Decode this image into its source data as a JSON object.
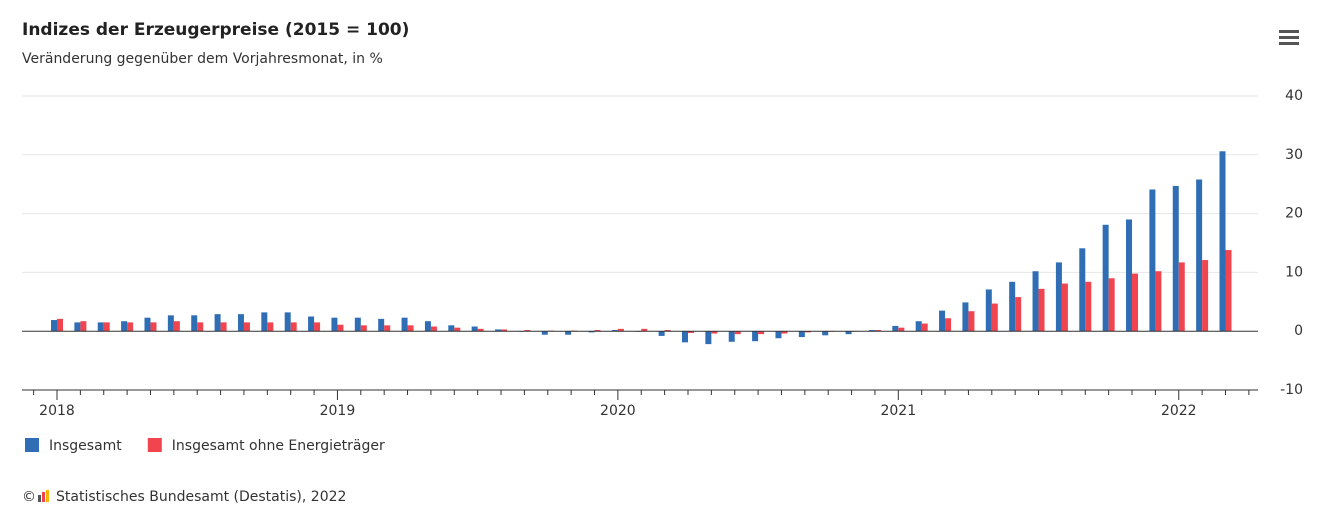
{
  "chart_data": {
    "type": "bar",
    "title": "Indizes der Erzeugerpreise (2015 = 100)",
    "subtitle": "Veränderung gegenüber dem Vorjahresmonat, in %",
    "source": "Statistisches Bundesamt (Destatis), 2022",
    "categories": [
      "2018",
      null,
      null,
      null,
      null,
      null,
      null,
      null,
      null,
      null,
      null,
      null,
      "2019",
      null,
      null,
      null,
      null,
      null,
      null,
      null,
      null,
      null,
      null,
      null,
      "2020",
      null,
      null,
      null,
      null,
      null,
      null,
      null,
      null,
      null,
      null,
      null,
      "2021",
      null,
      null,
      null,
      null,
      null,
      null,
      null,
      null,
      null,
      null,
      null,
      "2022",
      null,
      null
    ],
    "series": [
      {
        "name": "Insgesamt",
        "color": "#2f6eb5",
        "values": [
          1.9,
          1.5,
          1.5,
          1.7,
          2.3,
          2.7,
          2.7,
          2.9,
          2.9,
          3.2,
          3.2,
          2.5,
          2.3,
          2.3,
          2.1,
          2.3,
          1.7,
          1.0,
          0.8,
          0.3,
          0.0,
          -0.6,
          -0.6,
          -0.2,
          0.2,
          -0.1,
          -0.8,
          -1.9,
          -2.2,
          -1.8,
          -1.7,
          -1.2,
          -1.0,
          -0.7,
          -0.5,
          0.2,
          0.9,
          1.7,
          3.5,
          4.9,
          7.1,
          8.4,
          10.2,
          11.7,
          14.1,
          18.1,
          19.0,
          24.1,
          24.7,
          25.8,
          30.6
        ]
      },
      {
        "name": "Insgesamt ohne Energieträger",
        "color": "#f0444f",
        "values": [
          2.1,
          1.7,
          1.5,
          1.5,
          1.5,
          1.7,
          1.5,
          1.5,
          1.5,
          1.5,
          1.5,
          1.5,
          1.1,
          1.0,
          1.0,
          1.0,
          0.8,
          0.6,
          0.4,
          0.3,
          0.2,
          0.1,
          0.1,
          0.2,
          0.4,
          0.4,
          0.2,
          -0.3,
          -0.4,
          -0.5,
          -0.5,
          -0.4,
          -0.2,
          -0.1,
          0.0,
          0.2,
          0.6,
          1.3,
          2.2,
          3.4,
          4.7,
          5.8,
          7.2,
          8.1,
          8.4,
          9.0,
          9.8,
          10.2,
          11.7,
          12.1,
          13.8
        ]
      }
    ],
    "ylim": [
      -10,
      40
    ],
    "yticks": [
      -10,
      0,
      10,
      20,
      30,
      40
    ],
    "grid": true,
    "legend": "bottom-left"
  }
}
